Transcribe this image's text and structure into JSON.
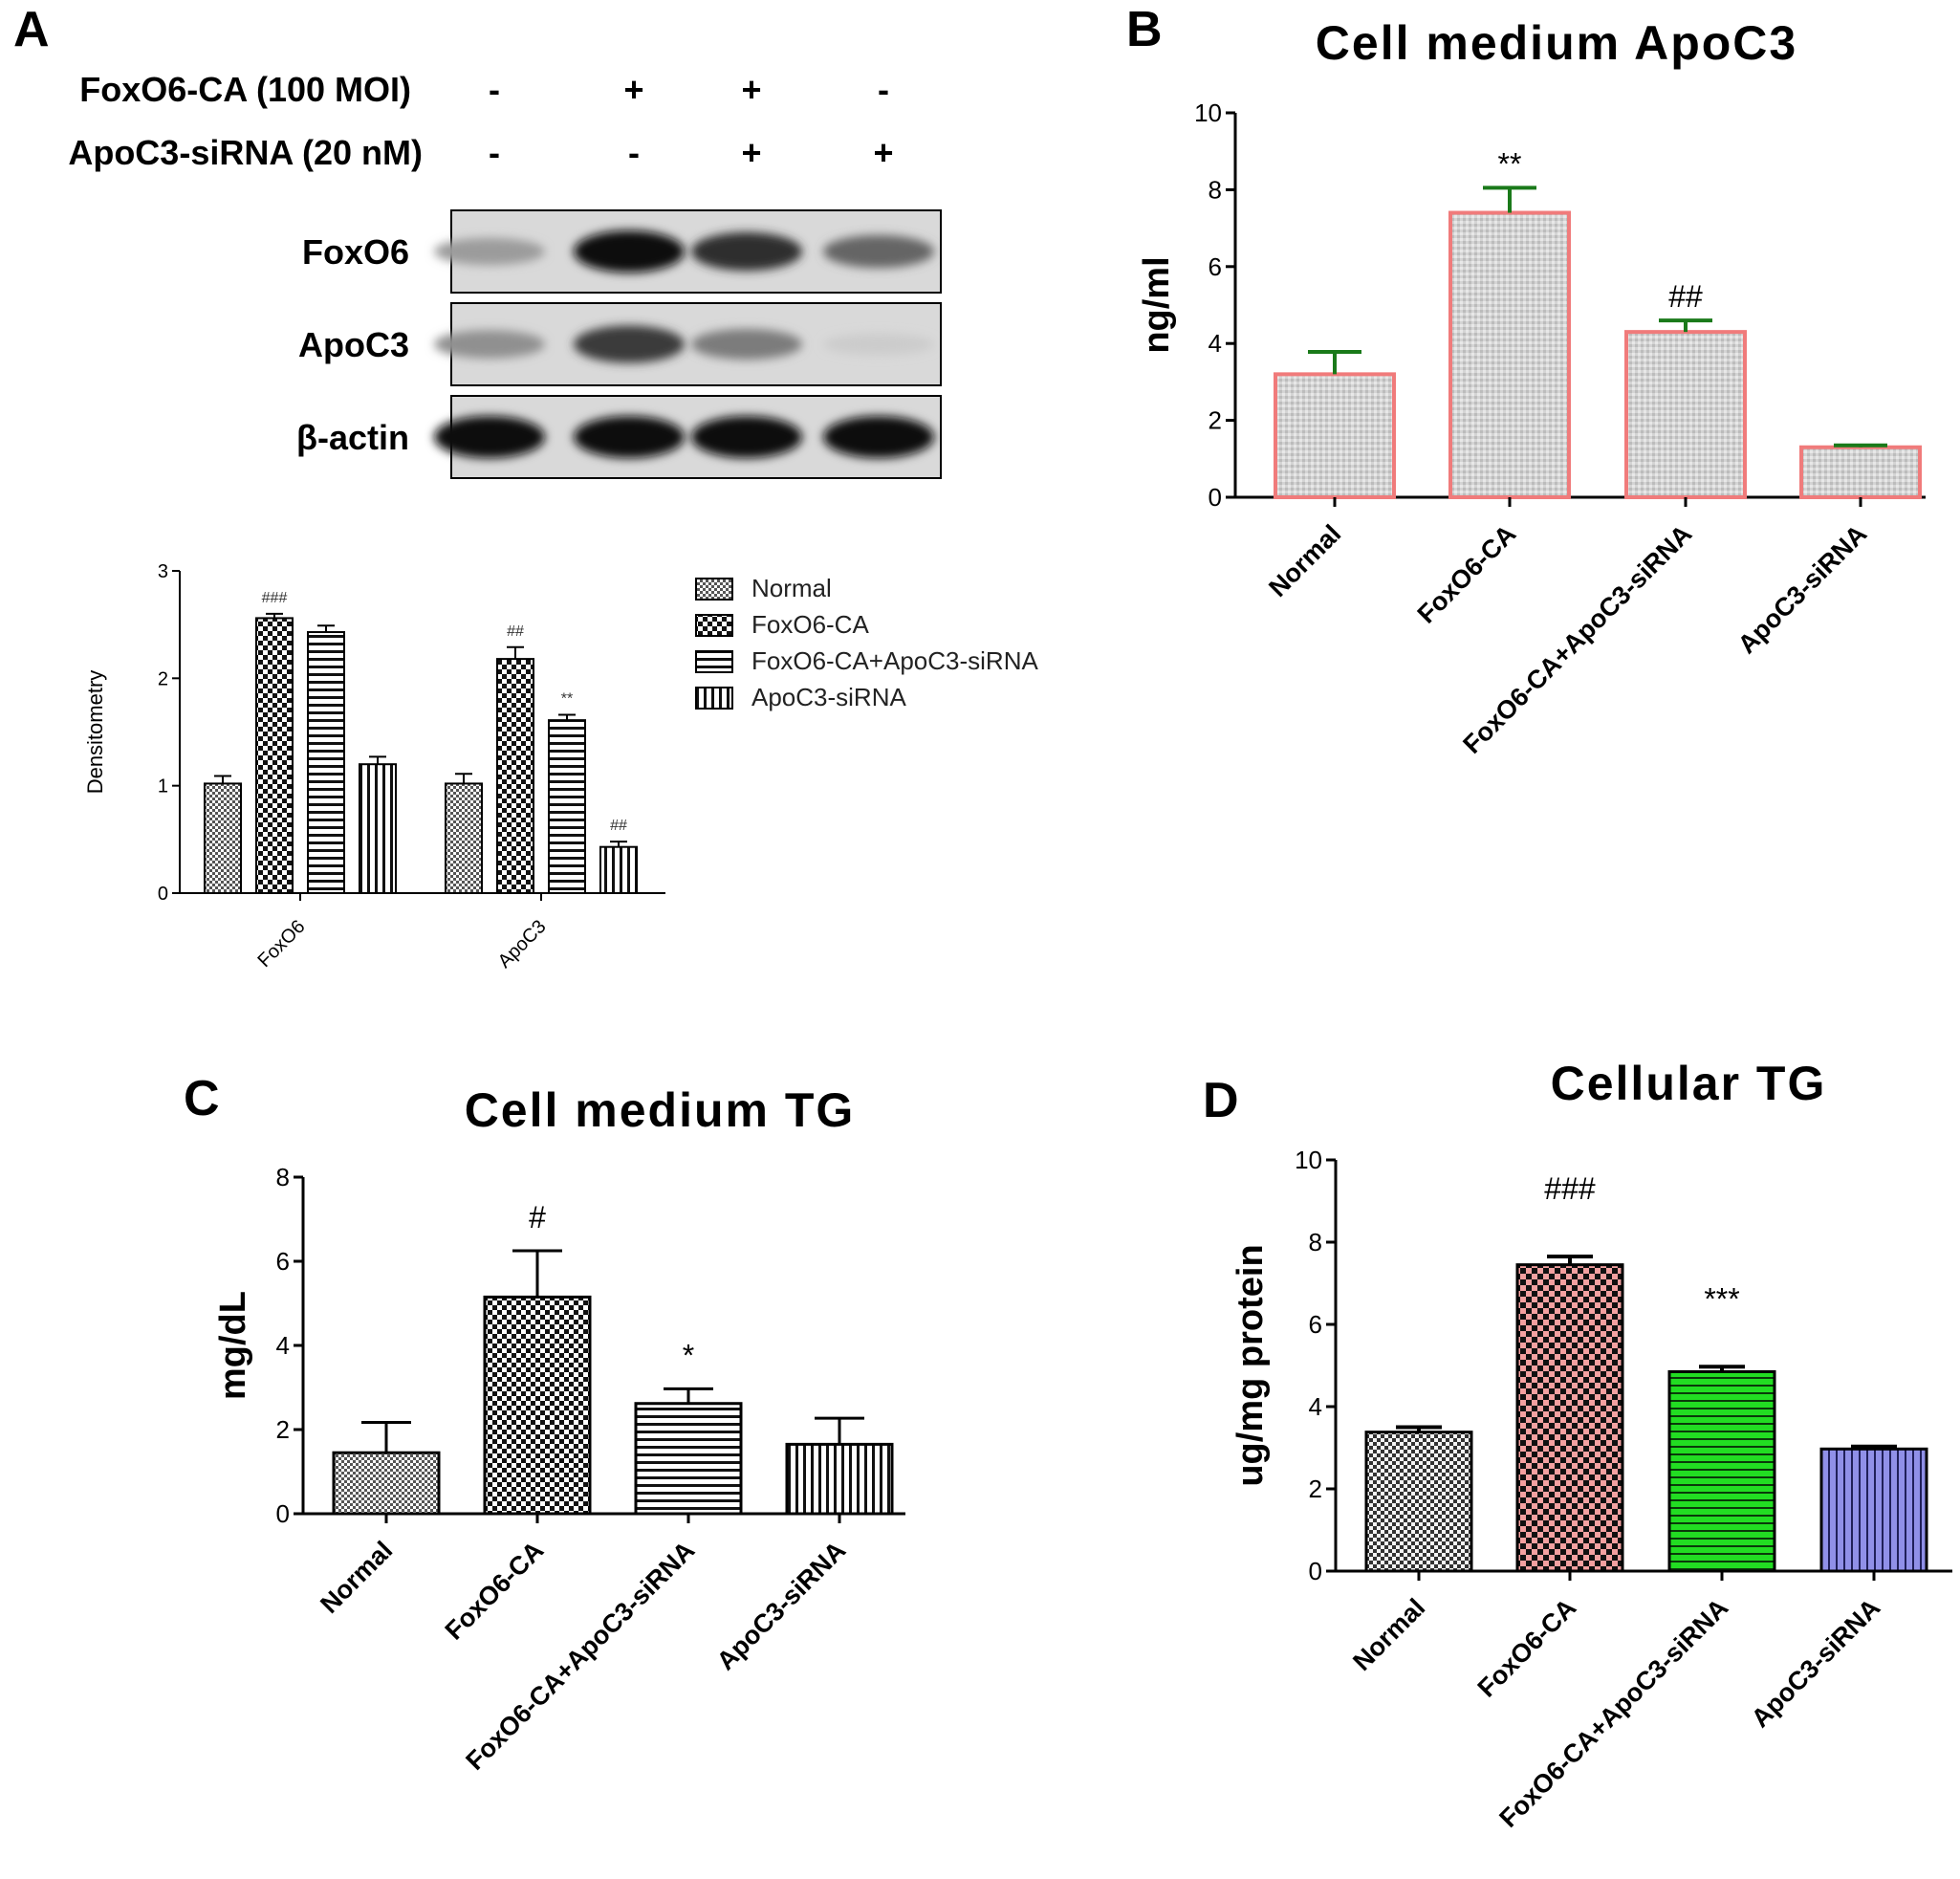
{
  "panel_labels": [
    "A",
    "B",
    "C",
    "D"
  ],
  "western_blot": {
    "conditions": [
      {
        "label": "FoxO6-CA (100 MOI)",
        "signs": [
          "-",
          "+",
          "+",
          "-"
        ]
      },
      {
        "label": "ApoC3-siRNA (20 nM)",
        "signs": [
          "-",
          "-",
          "+",
          "+"
        ]
      }
    ],
    "bands": [
      {
        "label": "FoxO6",
        "intensity": [
          0.35,
          1.0,
          0.85,
          0.6
        ]
      },
      {
        "label": "ApoC3",
        "intensity": [
          0.4,
          0.8,
          0.5,
          0.12
        ]
      },
      {
        "label": "β-actin",
        "intensity": [
          1.0,
          1.0,
          1.0,
          1.0
        ]
      }
    ]
  },
  "chart_data": [
    {
      "panel": "A",
      "type": "bar",
      "title": "",
      "xlabel": "",
      "ylabel": "Densitometry",
      "ylim": [
        0,
        3
      ],
      "yticks": [
        0,
        1,
        2,
        3
      ],
      "categories": [
        "FoxO6",
        "ApoC3"
      ],
      "legend": "right",
      "series": [
        {
          "name": "Normal",
          "values": [
            1.02,
            1.02
          ],
          "errors": [
            0.07,
            0.09
          ],
          "annotations": [
            "",
            ""
          ]
        },
        {
          "name": "FoxO6-CA",
          "values": [
            2.56,
            2.18
          ],
          "errors": [
            0.04,
            0.11
          ],
          "annotations": [
            "###",
            "##"
          ]
        },
        {
          "name": "FoxO6-CA+ApoC3-siRNA",
          "values": [
            2.43,
            1.61
          ],
          "errors": [
            0.06,
            0.05
          ],
          "annotations": [
            "",
            "**"
          ]
        },
        {
          "name": "ApoC3-siRNA",
          "values": [
            1.2,
            0.43
          ],
          "errors": [
            0.07,
            0.05
          ],
          "annotations": [
            "",
            "##"
          ]
        }
      ]
    },
    {
      "panel": "B",
      "type": "bar",
      "title": "Cell medium ApoC3",
      "xlabel": "",
      "ylabel": "ng/ml",
      "ylim": [
        0,
        10
      ],
      "yticks": [
        0,
        2,
        4,
        6,
        8,
        10
      ],
      "categories": [
        "Normal",
        "FoxO6-CA",
        "FoxO6-CA+ApoC3-siRNA",
        "ApoC3-siRNA"
      ],
      "values": [
        3.2,
        7.4,
        4.3,
        1.3
      ],
      "errors": [
        0.58,
        0.65,
        0.3,
        0.05
      ],
      "annotations": [
        "",
        "**",
        "##",
        ""
      ],
      "bar_fill": "#d7d7d7",
      "bar_edge": "#f07b7b",
      "errorbar_color": "#1a7a1a"
    },
    {
      "panel": "C",
      "type": "bar",
      "title": "Cell medium TG",
      "xlabel": "",
      "ylabel": "mg/dL",
      "ylim": [
        0,
        8
      ],
      "yticks": [
        0,
        2,
        4,
        6,
        8
      ],
      "categories": [
        "Normal",
        "FoxO6-CA",
        "FoxO6-CA+ApoC3-siRNA",
        "ApoC3-siRNA"
      ],
      "values": [
        1.45,
        5.15,
        2.62,
        1.65
      ],
      "errors": [
        0.72,
        1.1,
        0.35,
        0.62
      ],
      "annotations": [
        "",
        "#",
        "*",
        ""
      ]
    },
    {
      "panel": "D",
      "type": "bar",
      "title": "Cellular TG",
      "xlabel": "",
      "ylabel": "ug/mg protein",
      "ylim": [
        0,
        10
      ],
      "yticks": [
        0,
        2,
        4,
        6,
        8,
        10
      ],
      "categories": [
        "Normal",
        "FoxO6-CA",
        "FoxO6-CA+ApoC3-siRNA",
        "ApoC3-siRNA"
      ],
      "values": [
        3.38,
        7.45,
        4.85,
        2.97
      ],
      "errors": [
        0.12,
        0.2,
        0.12,
        0.06
      ],
      "annotations": [
        "",
        "###",
        "***",
        ""
      ],
      "bar_colors": [
        "#c8c8c8",
        "#f08080",
        "#22dd22",
        "#9090e8"
      ]
    }
  ]
}
